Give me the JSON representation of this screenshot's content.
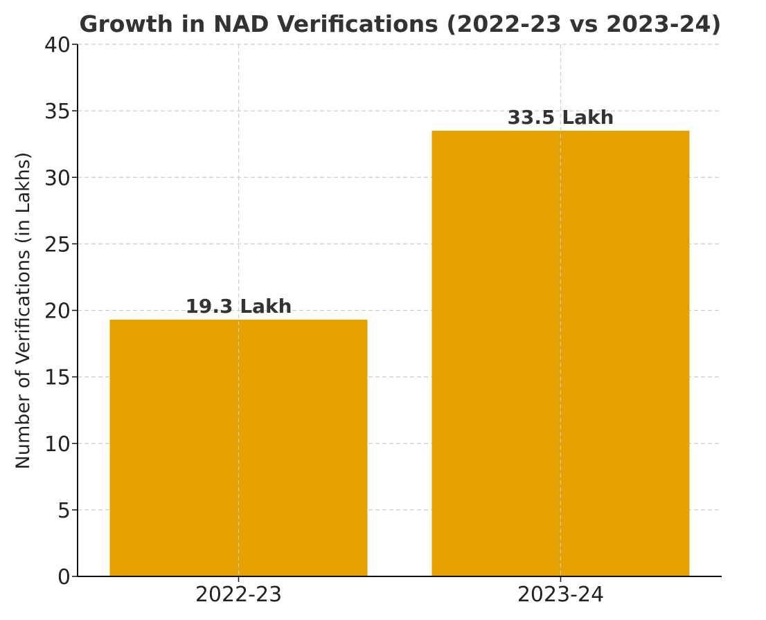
{
  "chart_data": {
    "type": "bar",
    "title": "Growth in NAD Verifications (2022-23 vs 2023-24)",
    "xlabel": "",
    "ylabel": "Number of Verifications (in Lakhs)",
    "categories": [
      "2022-23",
      "2023-24"
    ],
    "values": [
      19.3,
      33.5
    ],
    "data_labels": [
      "19.3 Lakh",
      "33.5 Lakh"
    ],
    "ylim": [
      0,
      40
    ],
    "yticks": [
      0,
      5,
      10,
      15,
      20,
      25,
      30,
      35,
      40
    ],
    "grid": true,
    "bar_color": "#E5A100"
  }
}
